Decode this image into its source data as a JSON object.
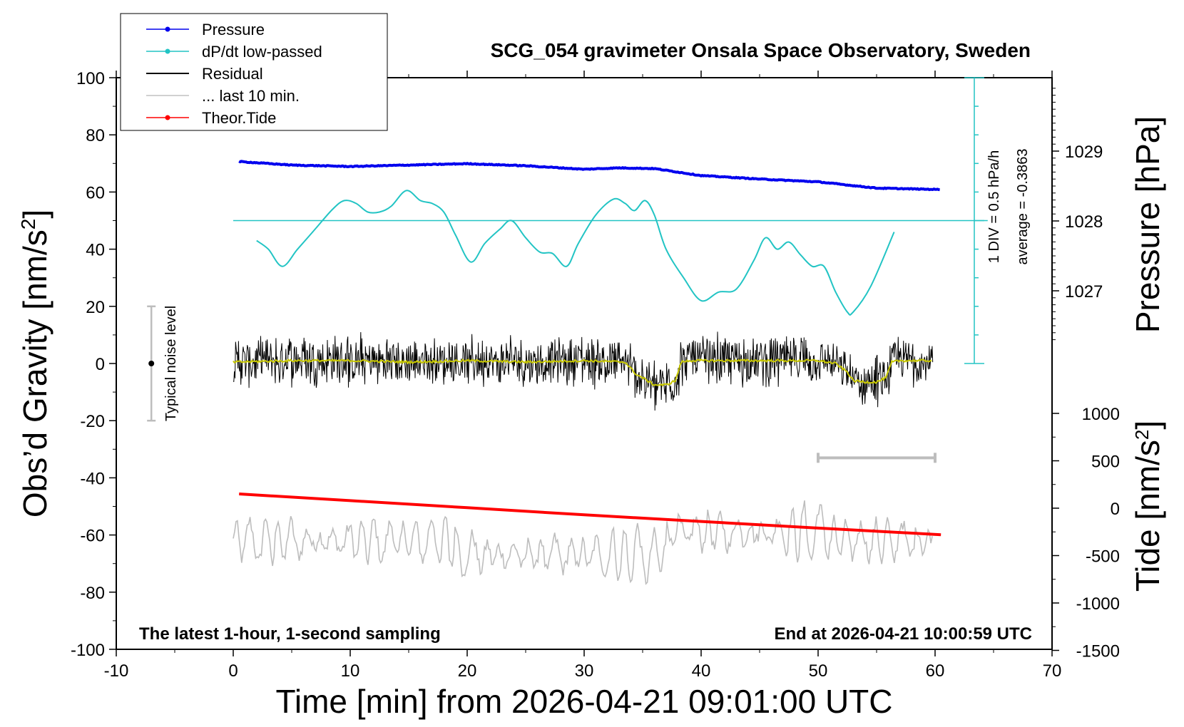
{
  "chart_data": {
    "type": "line",
    "title": "SCG_054 gravimeter Onsala Space Observatory, Sweden",
    "xlabel": "Time [min] from 2026-04-21 09:01:00 UTC",
    "ylabel_left_main": "Obs’d Gravity [nm/s",
    "ylabel_left_sup": "2",
    "ylabel_left_end": "]",
    "ylabel_right_pressure": "Pressure [hPa]",
    "ylabel_right_tide_main": "Tide [nm/s",
    "ylabel_right_tide_sup": "2",
    "ylabel_right_tide_end": "]",
    "xlim": [
      -10,
      70
    ],
    "ylim": [
      -100,
      100
    ],
    "x_ticks": [
      "-10",
      "0",
      "10",
      "20",
      "30",
      "40",
      "50",
      "60",
      "70"
    ],
    "y_ticks": [
      "-100",
      "-80",
      "-60",
      "-40",
      "-20",
      "0",
      "20",
      "40",
      "60",
      "80",
      "100"
    ],
    "pressure_axis": {
      "ticks": [
        {
          "value": 1027,
          "label": "1027"
        },
        {
          "value": 1028,
          "label": "1028"
        },
        {
          "value": 1029,
          "label": "1029"
        }
      ]
    },
    "tide_axis": {
      "ticks": [
        {
          "value": -1500,
          "label": "-1500"
        },
        {
          "value": -1000,
          "label": "-1000"
        },
        {
          "value": -500,
          "label": "-500"
        },
        {
          "value": 0,
          "label": "0"
        },
        {
          "value": 500,
          "label": "500"
        },
        {
          "value": 1000,
          "label": "1000"
        }
      ]
    },
    "legend": {
      "position": "top-left",
      "entries": [
        {
          "label": "Pressure",
          "color": "#0000ee",
          "marker": true
        },
        {
          "label": "dP/dt low-passed",
          "color": "#22c4c4",
          "marker": true
        },
        {
          "label": "Residual",
          "color": "#000000",
          "marker": false
        },
        {
          "label": "... last 10 min.",
          "color": "#c0c0c0",
          "marker": false
        },
        {
          "label": "Theor.Tide",
          "color": "#ff0000",
          "marker": true
        }
      ]
    },
    "annotations": {
      "noise_label": "Typical noise level",
      "noise_bar": {
        "x": -7,
        "y_low": -20,
        "y_high": 20,
        "y_center": 0
      },
      "div_label": "1 DIV = 0.5 hPa/h",
      "average_label": "average = -0.3863",
      "bottom_left": "The latest 1-hour, 1-second sampling",
      "bottom_right": "End at 2026-04-21 10:00:59 UTC",
      "scale_bar": {
        "x_start": 50,
        "x_end": 60,
        "y": -33
      }
    },
    "series": [
      {
        "name": "Pressure",
        "color": "#0000ee",
        "axis": "pressure",
        "x": [
          0.5,
          5,
          10,
          15,
          20,
          25,
          30,
          33,
          36,
          40,
          45,
          50,
          55,
          60.5
        ],
        "values": [
          1028.85,
          1028.8,
          1028.78,
          1028.8,
          1028.82,
          1028.79,
          1028.74,
          1028.76,
          1028.75,
          1028.65,
          1028.6,
          1028.56,
          1028.47,
          1028.45
        ]
      },
      {
        "name": "dP/dt low-passed",
        "color": "#22c4c4",
        "axis": "gravity",
        "x": [
          2,
          3,
          4.2,
          5.5,
          7,
          8.5,
          9.5,
          10.5,
          11.5,
          12.5,
          13.5,
          14.8,
          16,
          17,
          18,
          19,
          20.3,
          21.5,
          22.8,
          23.8,
          25,
          26.2,
          27.3,
          28.5,
          29.5,
          31,
          32.5,
          33.5,
          34.3,
          35.2,
          36,
          37,
          38.5,
          40,
          41.5,
          43,
          44.5,
          45.5,
          46.5,
          47.5,
          48.5,
          49.5,
          50.5,
          51.5,
          52.5,
          53,
          54.5,
          56.5
        ],
        "values": [
          43,
          40,
          34,
          40,
          47,
          54,
          57,
          56,
          53,
          53,
          55,
          60.5,
          57,
          56,
          53,
          45,
          35.5,
          42,
          47,
          50,
          44,
          39,
          38.5,
          34,
          42,
          52,
          57.5,
          56,
          53.5,
          57,
          52,
          40,
          30,
          22,
          25,
          26,
          36,
          44,
          40,
          42.5,
          38,
          34,
          34,
          25,
          18,
          18,
          27,
          46
        ]
      },
      {
        "name": "Theor.Tide",
        "color": "#ff0000",
        "axis": "tide",
        "x": [
          0.5,
          10,
          20,
          30,
          40,
          50,
          60.5
        ],
        "values": [
          150,
          80,
          5,
          -70,
          -140,
          -210,
          -280
        ]
      },
      {
        "name": "Residual (smoothed)",
        "color": "#c8c800",
        "axis": "gravity",
        "x": [
          0,
          5,
          10,
          15,
          20,
          25,
          30,
          33.5,
          34.5,
          35,
          36,
          37,
          37.8,
          38.3,
          39,
          45,
          50,
          51.5,
          52.5,
          53,
          54,
          55,
          55.8,
          56.3,
          57,
          60
        ],
        "values": [
          0.5,
          1,
          1,
          0.5,
          1,
          0.5,
          1,
          0.5,
          -4,
          -5,
          -7.5,
          -7.5,
          -6,
          0.5,
          1,
          1,
          1,
          0,
          -3,
          -6,
          -6.5,
          -6.5,
          -5,
          0.5,
          1,
          1
        ]
      }
    ]
  }
}
